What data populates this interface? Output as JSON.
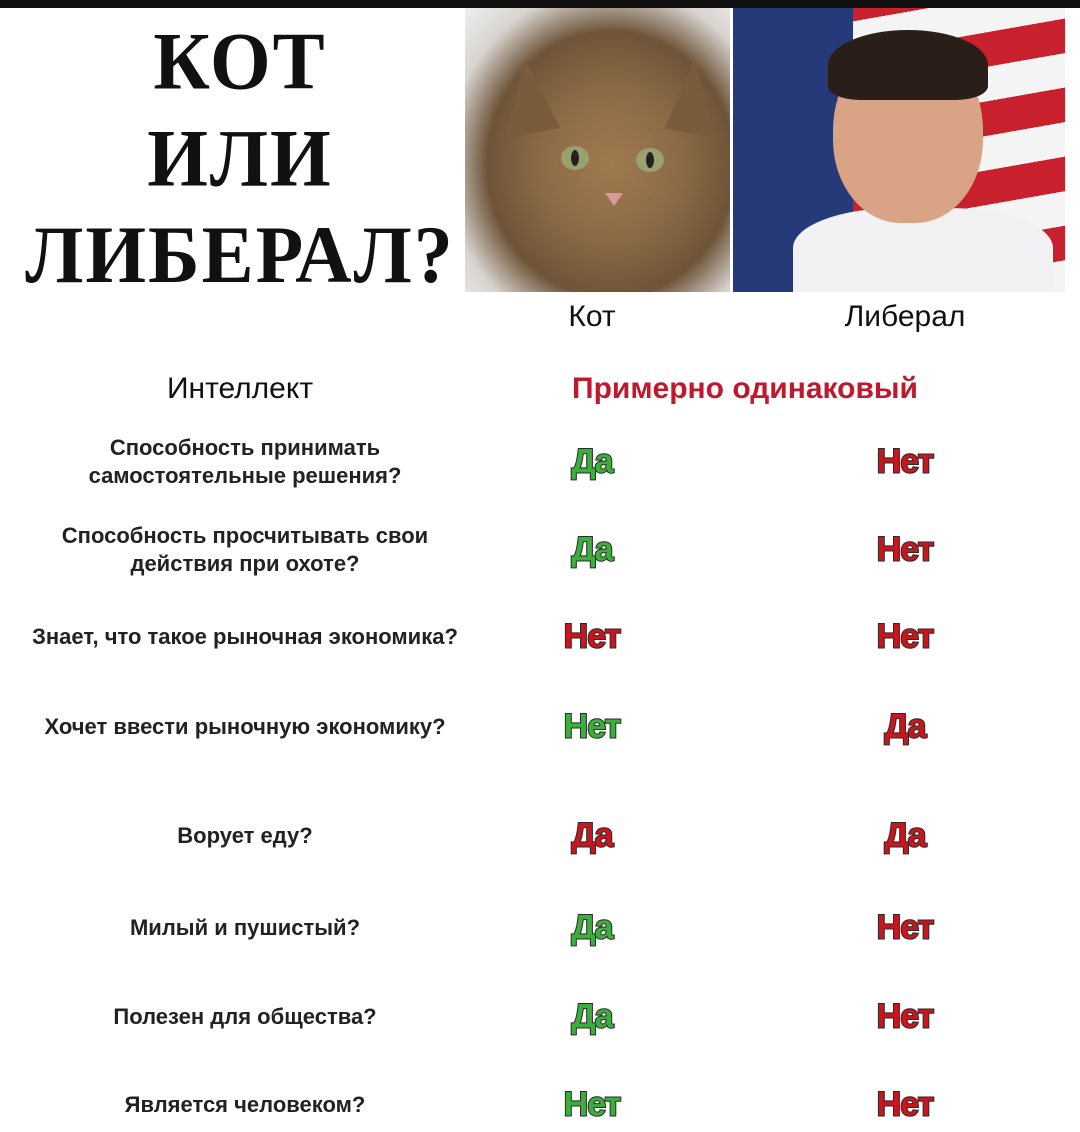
{
  "title_lines": [
    "КОТ",
    "ИЛИ",
    "ЛИБЕРАЛ?"
  ],
  "columns": {
    "cat": "Кот",
    "liberal": "Либерал"
  },
  "intellect": {
    "label": "Интеллект",
    "value": "Примерно одинаковый",
    "color": "#c0182c"
  },
  "colors": {
    "green": "#3cae3c",
    "red": "#c8161e"
  },
  "rows": [
    {
      "question": "Способность принимать самостоятельные решения?",
      "cat": "Да",
      "cat_color": "green",
      "liberal": "Нет",
      "liberal_color": "red"
    },
    {
      "question": "Способность просчитывать свои действия при охоте?",
      "cat": "Да",
      "cat_color": "green",
      "liberal": "Нет",
      "liberal_color": "red"
    },
    {
      "question": "Знает, что такое рыночная экономика?",
      "cat": "Нет",
      "cat_color": "red",
      "liberal": "Нет",
      "liberal_color": "red"
    },
    {
      "question": "Хочет ввести рыночную экономику?",
      "cat": "Нет",
      "cat_color": "green",
      "liberal": "Да",
      "liberal_color": "red"
    },
    {
      "question": "Ворует еду?",
      "cat": "Да",
      "cat_color": "red",
      "liberal": "Да",
      "liberal_color": "red"
    },
    {
      "question": "Милый и пушистый?",
      "cat": "Да",
      "cat_color": "green",
      "liberal": "Нет",
      "liberal_color": "red"
    },
    {
      "question": "Полезен для общества?",
      "cat": "Да",
      "cat_color": "green",
      "liberal": "Нет",
      "liberal_color": "red"
    },
    {
      "question": "Является человеком?",
      "cat": "Нет",
      "cat_color": "green",
      "liberal": "Нет",
      "liberal_color": "red"
    }
  ]
}
